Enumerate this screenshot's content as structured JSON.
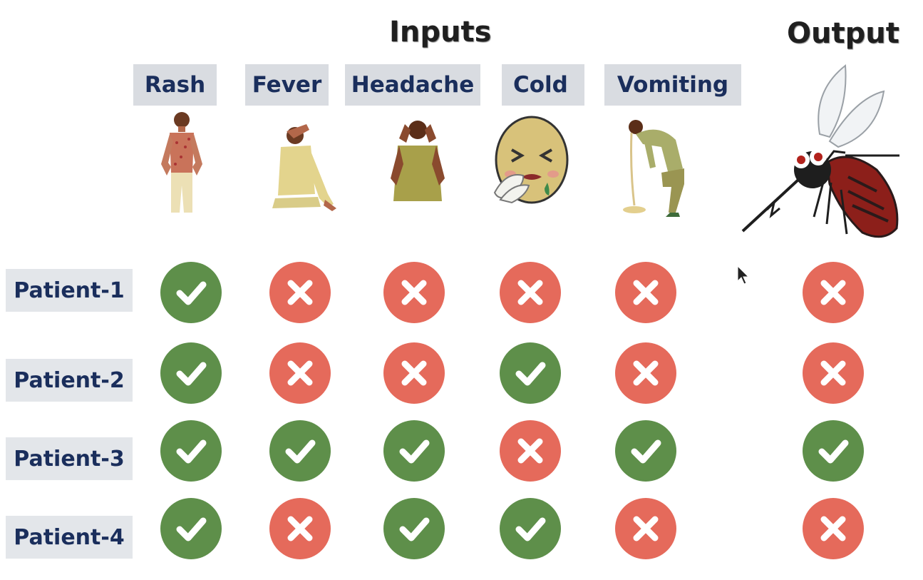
{
  "headings": {
    "inputs": "Inputs",
    "output": "Output"
  },
  "symptoms": [
    "Rash",
    "Fever",
    "Headache",
    "Cold",
    "Vomiting"
  ],
  "illustrations": {
    "rash": "rash-person-icon",
    "fever": "fever-person-icon",
    "headache": "headache-person-icon",
    "cold": "sneezing-face-icon",
    "vomiting": "vomiting-person-icon",
    "output": "mosquito-icon"
  },
  "patients": [
    {
      "label": "Patient-1",
      "inputs": [
        true,
        false,
        false,
        false,
        false
      ],
      "output": false
    },
    {
      "label": "Patient-2",
      "inputs": [
        true,
        false,
        false,
        true,
        false
      ],
      "output": false
    },
    {
      "label": "Patient-3",
      "inputs": [
        true,
        true,
        true,
        false,
        true
      ],
      "output": true
    },
    {
      "label": "Patient-4",
      "inputs": [
        true,
        false,
        true,
        true,
        false
      ],
      "output": false
    }
  ],
  "colors": {
    "yes": "#5e8f4a",
    "no": "#e56a5b",
    "label_bg": "#d9dce1",
    "label_text": "#1a2e5c"
  }
}
